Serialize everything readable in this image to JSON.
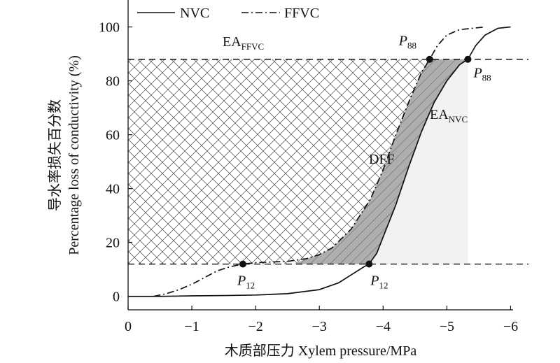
{
  "chart_data": {
    "type": "line",
    "xlabel": "木质部压力 Xylem pressure/MPa",
    "ylabel_zh": "导水率损失百分数",
    "ylabel_en": "Percentage loss of conductivity (%)",
    "xlim": [
      0,
      -6.5
    ],
    "ylim": [
      -5,
      110
    ],
    "x_ticks": [
      0,
      -1,
      -2,
      -3,
      -4,
      -5,
      -6
    ],
    "x_tick_labels": [
      "0",
      "−1",
      "−2",
      "−3",
      "−4",
      "−5",
      "−6"
    ],
    "y_ticks": [
      0,
      20,
      40,
      60,
      80,
      100
    ],
    "y_tick_labels": [
      "0",
      "20",
      "40",
      "60",
      "80",
      "100"
    ],
    "grid": false,
    "legend_position": "top-left",
    "series": [
      {
        "name": "NVC",
        "style": "solid",
        "x": [
          0,
          -0.5,
          -1.0,
          -1.5,
          -2.0,
          -2.5,
          -3.0,
          -3.3,
          -3.5,
          -3.7,
          -3.78,
          -3.9,
          -4.0,
          -4.2,
          -4.4,
          -4.6,
          -4.8,
          -5.0,
          -5.2,
          -5.33,
          -5.45,
          -5.6,
          -5.8,
          -6.0
        ],
        "y": [
          0,
          0,
          0.2,
          0.3,
          0.5,
          1,
          2.5,
          5,
          8,
          11,
          12,
          16,
          22,
          34,
          48,
          61,
          72,
          80,
          86,
          88,
          93,
          97,
          99.5,
          100
        ]
      },
      {
        "name": "FFVC",
        "style": "dashdot",
        "x": [
          -0.4,
          -0.6,
          -0.8,
          -1.0,
          -1.2,
          -1.4,
          -1.6,
          -1.8,
          -2.0,
          -2.5,
          -2.8,
          -3.0,
          -3.2,
          -3.5,
          -3.8,
          -4.0,
          -4.2,
          -4.4,
          -4.6,
          -4.73,
          -4.85,
          -5.0,
          -5.2,
          -5.4,
          -5.6
        ],
        "y": [
          0,
          1,
          2.5,
          4.5,
          7,
          9.5,
          11,
          12,
          12.5,
          13,
          14,
          15.5,
          18,
          25,
          36,
          47,
          60,
          72,
          83,
          88,
          93,
          97,
          99,
          99.5,
          100
        ]
      }
    ],
    "reference_lines": [
      {
        "axis": "y",
        "value": 88,
        "style": "dashed"
      },
      {
        "axis": "y",
        "value": 12,
        "style": "dashed"
      }
    ],
    "points": [
      {
        "label_main": "P",
        "label_sub": "88",
        "x": -4.73,
        "y": 88
      },
      {
        "label_main": "P",
        "label_sub": "88",
        "x": -5.33,
        "y": 88
      },
      {
        "label_main": "P",
        "label_sub": "12",
        "x": -1.8,
        "y": 12
      },
      {
        "label_main": "P",
        "label_sub": "12",
        "x": -3.78,
        "y": 12
      }
    ],
    "annotations": [
      {
        "main": "EA",
        "sub": "FFVC",
        "region": "cross-hatched area between the dashed lines left of the FFVC curve"
      },
      {
        "main": "EA",
        "sub": "NVC",
        "region": "light shaded area right of the NVC curve"
      },
      {
        "main": "DFF",
        "sub": "",
        "region": "gray area between FFVC and NVC curves"
      }
    ]
  }
}
